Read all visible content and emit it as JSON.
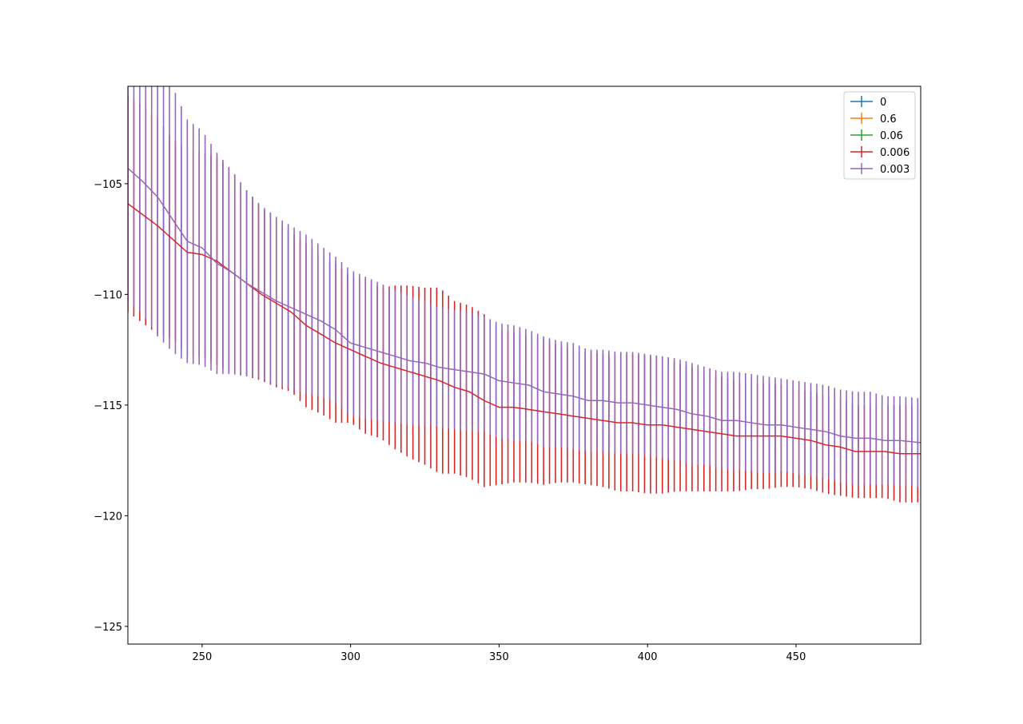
{
  "chart_data": {
    "type": "line",
    "title": "",
    "xlabel": "",
    "ylabel": "",
    "xlim": [
      225,
      492
    ],
    "ylim": [
      -125.8,
      -100.6
    ],
    "xticks": [
      250,
      300,
      350,
      400,
      450
    ],
    "yticks": [
      -105,
      -110,
      -115,
      -120,
      -125
    ],
    "xtick_labels": [
      "250",
      "300",
      "350",
      "400",
      "450"
    ],
    "ytick_labels": [
      "−105",
      "−110",
      "−115",
      "−120",
      "−125"
    ],
    "grid": false,
    "legend_position": "top-right",
    "series": [
      {
        "name": "0",
        "color": "#1f77b4",
        "x": [],
        "y": [],
        "err": []
      },
      {
        "name": "0.6",
        "color": "#ff7f0e",
        "x": [],
        "y": [],
        "err": []
      },
      {
        "name": "0.06",
        "color": "#2ca02c",
        "x": [],
        "y": [],
        "err": []
      },
      {
        "name": "0.006",
        "color": "#d62728",
        "x": [
          225,
          230,
          235,
          240,
          245,
          250,
          255,
          260,
          265,
          270,
          275,
          280,
          285,
          290,
          295,
          300,
          305,
          310,
          315,
          320,
          325,
          330,
          335,
          340,
          345,
          350,
          355,
          360,
          365,
          370,
          375,
          380,
          385,
          390,
          395,
          400,
          405,
          410,
          415,
          420,
          425,
          430,
          435,
          440,
          445,
          450,
          455,
          460,
          465,
          470,
          475,
          480,
          485,
          492
        ],
        "y": [
          -105.9,
          -106.4,
          -106.9,
          -107.5,
          -108.1,
          -108.2,
          -108.5,
          -109.0,
          -109.5,
          -110.0,
          -110.4,
          -110.8,
          -111.4,
          -111.8,
          -112.2,
          -112.5,
          -112.8,
          -113.1,
          -113.3,
          -113.5,
          -113.7,
          -113.9,
          -114.2,
          -114.4,
          -114.8,
          -115.1,
          -115.1,
          -115.2,
          -115.3,
          -115.4,
          -115.5,
          -115.6,
          -115.7,
          -115.8,
          -115.8,
          -115.9,
          -115.9,
          -116.0,
          -116.1,
          -116.2,
          -116.3,
          -116.4,
          -116.4,
          -116.4,
          -116.4,
          -116.5,
          -116.6,
          -116.8,
          -116.9,
          -117.1,
          -117.1,
          -117.1,
          -117.2,
          -117.2
        ],
        "err": [
          4.9,
          4.9,
          4.9,
          4.5,
          4.7,
          4.6,
          4.7,
          4.6,
          4.2,
          3.9,
          3.8,
          3.6,
          3.7,
          3.6,
          3.6,
          3.3,
          3.5,
          3.4,
          3.7,
          3.9,
          4.0,
          4.2,
          3.9,
          3.9,
          3.9,
          3.5,
          3.4,
          3.3,
          3.3,
          3.1,
          3.0,
          3.0,
          3.0,
          3.1,
          3.1,
          3.1,
          3.1,
          2.9,
          2.8,
          2.7,
          2.6,
          2.5,
          2.4,
          2.4,
          2.3,
          2.2,
          2.2,
          2.2,
          2.2,
          2.1,
          2.1,
          2.1,
          2.2,
          2.2
        ]
      },
      {
        "name": "0.003",
        "color": "#9467bd",
        "x": [
          225,
          230,
          235,
          240,
          245,
          250,
          255,
          260,
          265,
          270,
          275,
          280,
          285,
          290,
          295,
          300,
          305,
          310,
          315,
          320,
          325,
          330,
          335,
          340,
          345,
          350,
          355,
          360,
          365,
          370,
          375,
          380,
          385,
          390,
          395,
          400,
          405,
          410,
          415,
          420,
          425,
          430,
          435,
          440,
          445,
          450,
          455,
          460,
          465,
          470,
          475,
          480,
          485,
          492
        ],
        "y": [
          -104.3,
          -104.9,
          -105.6,
          -106.6,
          -107.6,
          -107.9,
          -108.6,
          -109.0,
          -109.5,
          -109.9,
          -110.3,
          -110.6,
          -110.9,
          -111.2,
          -111.6,
          -112.2,
          -112.4,
          -112.6,
          -112.8,
          -113.0,
          -113.1,
          -113.3,
          -113.4,
          -113.5,
          -113.6,
          -113.9,
          -114.0,
          -114.1,
          -114.4,
          -114.5,
          -114.6,
          -114.8,
          -114.8,
          -114.9,
          -114.9,
          -115.0,
          -115.1,
          -115.2,
          -115.4,
          -115.5,
          -115.7,
          -115.7,
          -115.8,
          -115.9,
          -115.9,
          -116.0,
          -116.1,
          -116.2,
          -116.4,
          -116.5,
          -116.5,
          -116.6,
          -116.6,
          -116.7
        ],
        "err": [
          6.0,
          6.0,
          6.3,
          6.0,
          5.5,
          5.3,
          5.0,
          4.6,
          4.2,
          3.9,
          3.8,
          3.7,
          3.6,
          3.4,
          3.3,
          3.3,
          3.2,
          3.1,
          3.0,
          2.9,
          2.8,
          2.7,
          2.7,
          2.7,
          2.6,
          2.6,
          2.6,
          2.5,
          2.5,
          2.4,
          2.4,
          2.3,
          2.3,
          2.3,
          2.3,
          2.3,
          2.3,
          2.3,
          2.3,
          2.2,
          2.2,
          2.2,
          2.2,
          2.2,
          2.1,
          2.1,
          2.1,
          2.1,
          2.1,
          2.1,
          2.1,
          2.0,
          2.0,
          2.0
        ]
      }
    ]
  }
}
